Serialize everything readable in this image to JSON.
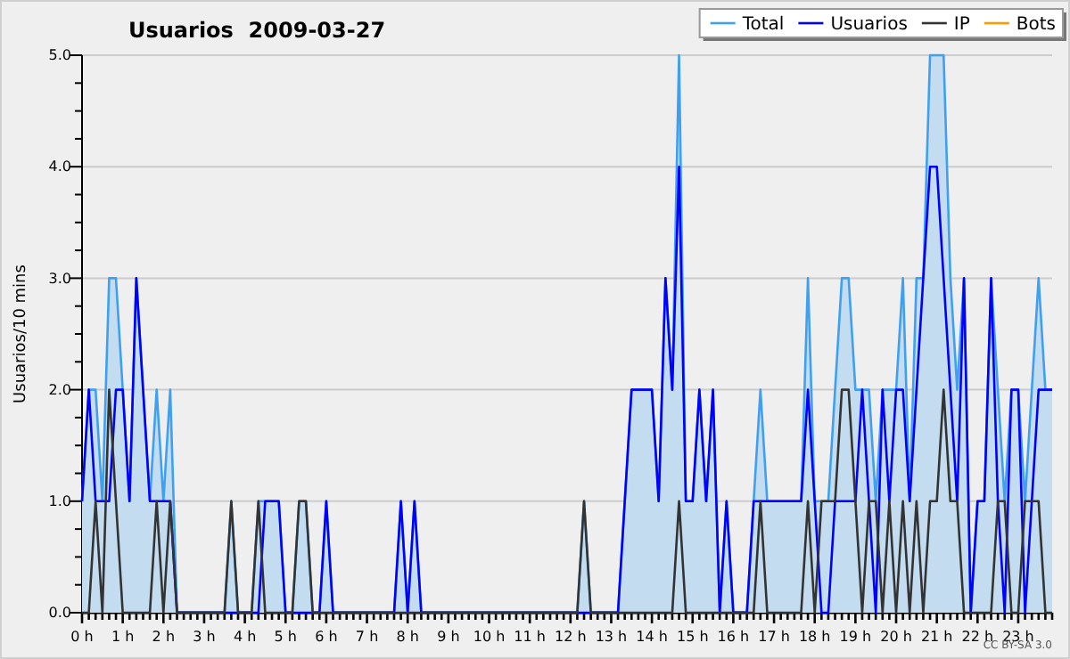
{
  "chart_data": {
    "type": "line",
    "title": "Usuarios  2009-03-27",
    "ylabel": "Usuarios/10 mins",
    "annotations": [
      "CC BY-SA 3.0"
    ],
    "categories": [
      "0 h",
      null,
      null,
      null,
      null,
      null,
      "1 h",
      null,
      null,
      null,
      null,
      null,
      "2 h",
      null,
      null,
      null,
      null,
      null,
      "3 h",
      null,
      null,
      null,
      null,
      null,
      "4 h",
      null,
      null,
      null,
      null,
      null,
      "5 h",
      null,
      null,
      null,
      null,
      null,
      "6 h",
      null,
      null,
      null,
      null,
      null,
      "7 h",
      null,
      null,
      null,
      null,
      null,
      "8 h",
      null,
      null,
      null,
      null,
      null,
      "9 h",
      null,
      null,
      null,
      null,
      null,
      "10 h",
      null,
      null,
      null,
      null,
      null,
      "11 h",
      null,
      null,
      null,
      null,
      null,
      "12 h",
      null,
      null,
      null,
      null,
      null,
      "13 h",
      null,
      null,
      null,
      null,
      null,
      "14 h",
      null,
      null,
      null,
      null,
      null,
      "15 h",
      null,
      null,
      null,
      null,
      null,
      "16 h",
      null,
      null,
      null,
      null,
      null,
      "17 h",
      null,
      null,
      null,
      null,
      null,
      "18 h",
      null,
      null,
      null,
      null,
      null,
      "19 h",
      null,
      null,
      null,
      null,
      null,
      "20 h",
      null,
      null,
      null,
      null,
      null,
      "21 h",
      null,
      null,
      null,
      null,
      null,
      "22 h",
      null,
      null,
      null,
      null,
      null,
      "23 h",
      null,
      null,
      null,
      null,
      null
    ],
    "ylim": [
      0,
      5
    ],
    "yticks": [
      {
        "value": 0,
        "label": "0.0"
      },
      {
        "value": 0.25,
        "label": null
      },
      {
        "value": 0.5,
        "label": null
      },
      {
        "value": 0.75,
        "label": null
      },
      {
        "value": 1,
        "label": "1.0"
      },
      {
        "value": 1.25,
        "label": null
      },
      {
        "value": 1.5,
        "label": null
      },
      {
        "value": 1.75,
        "label": null
      },
      {
        "value": 2,
        "label": "2.0"
      },
      {
        "value": 2.25,
        "label": null
      },
      {
        "value": 2.5,
        "label": null
      },
      {
        "value": 2.75,
        "label": null
      },
      {
        "value": 3,
        "label": "3.0"
      },
      {
        "value": 3.25,
        "label": null
      },
      {
        "value": 3.5,
        "label": null
      },
      {
        "value": 3.75,
        "label": null
      },
      {
        "value": 4,
        "label": "4.0"
      },
      {
        "value": 4.25,
        "label": null
      },
      {
        "value": 4.5,
        "label": null
      },
      {
        "value": 4.75,
        "label": null
      },
      {
        "value": 5,
        "label": "5.0"
      }
    ],
    "grid": "y",
    "legend": "top right",
    "marker": "none",
    "line_style": "solid",
    "series": [
      {
        "name": "Bots",
        "color": "#ff9900",
        "values": [
          null,
          null,
          null,
          null,
          null,
          null,
          null,
          null,
          null,
          null,
          null,
          null,
          null,
          null,
          null,
          null,
          null,
          null,
          null,
          null,
          null,
          null,
          null,
          null,
          null,
          null,
          null,
          null,
          null,
          null,
          null,
          null,
          null,
          null,
          null,
          null,
          null,
          null,
          null,
          null,
          null,
          null,
          null,
          null,
          null,
          null,
          null,
          null,
          null,
          null,
          null,
          null,
          null,
          null,
          null,
          null,
          null,
          null,
          null,
          null,
          null,
          null,
          null,
          null,
          null,
          null,
          null,
          null,
          null,
          null,
          null,
          null,
          null,
          null,
          null,
          null,
          null,
          null,
          null,
          null,
          null,
          null,
          null,
          null,
          null,
          null,
          null,
          null,
          null,
          null,
          null,
          null,
          null,
          null,
          null,
          null,
          null,
          null,
          null,
          null,
          null,
          null,
          null,
          null,
          null,
          null,
          null,
          null,
          null,
          null,
          null,
          null,
          null,
          null,
          null,
          null,
          null,
          null,
          null,
          null,
          null,
          null,
          null,
          null,
          null,
          null,
          null,
          null,
          null,
          null,
          null,
          null,
          null,
          null,
          null,
          null,
          null,
          null,
          null,
          null,
          null,
          null,
          null,
          null
        ]
      },
      {
        "name": "Total",
        "type": "area",
        "color": "#3fa0f0",
        "values": [
          1,
          2,
          2,
          1,
          3,
          3,
          2,
          1,
          3,
          2,
          1,
          2,
          1,
          2,
          0,
          0,
          0,
          0,
          0,
          0,
          0,
          0,
          1,
          0,
          0,
          0,
          1,
          1,
          1,
          1,
          0,
          0,
          1,
          1,
          0,
          0,
          1,
          0,
          0,
          0,
          0,
          0,
          0,
          0,
          0,
          0,
          0,
          1,
          0,
          1,
          0,
          0,
          0,
          0,
          0,
          0,
          0,
          0,
          0,
          0,
          0,
          0,
          0,
          0,
          0,
          0,
          0,
          0,
          0,
          0,
          0,
          0,
          0,
          0,
          1,
          0,
          0,
          0,
          0,
          0,
          1,
          2,
          2,
          2,
          2,
          1,
          3,
          2,
          5,
          1,
          1,
          2,
          1,
          2,
          0,
          1,
          0,
          0,
          0,
          1,
          2,
          1,
          1,
          1,
          1,
          1,
          1,
          3,
          1,
          1,
          1,
          2,
          3,
          3,
          2,
          2,
          2,
          1,
          2,
          2,
          2,
          3,
          1,
          3,
          3,
          5,
          5,
          5,
          3,
          2,
          3,
          0,
          1,
          1,
          3,
          2,
          1,
          2,
          2,
          1,
          2,
          3,
          2,
          2
        ]
      },
      {
        "name": "Usuarios",
        "color": "#0000ff",
        "values": [
          1,
          2,
          1,
          1,
          1,
          2,
          2,
          1,
          3,
          2,
          1,
          1,
          1,
          1,
          0,
          0,
          0,
          0,
          0,
          0,
          0,
          0,
          0,
          0,
          0,
          0,
          0,
          1,
          1,
          1,
          0,
          0,
          0,
          0,
          0,
          0,
          1,
          0,
          0,
          0,
          0,
          0,
          0,
          0,
          0,
          0,
          0,
          1,
          0,
          1,
          0,
          0,
          0,
          0,
          0,
          0,
          0,
          0,
          0,
          0,
          0,
          0,
          0,
          0,
          0,
          0,
          0,
          0,
          0,
          0,
          0,
          0,
          0,
          0,
          0,
          0,
          0,
          0,
          0,
          0,
          1,
          2,
          2,
          2,
          2,
          1,
          3,
          2,
          4,
          1,
          1,
          2,
          1,
          2,
          0,
          1,
          0,
          0,
          0,
          1,
          1,
          1,
          1,
          1,
          1,
          1,
          1,
          2,
          1,
          0,
          0,
          1,
          1,
          1,
          1,
          2,
          1,
          0,
          2,
          1,
          2,
          2,
          1,
          2,
          3,
          4,
          4,
          3,
          2,
          1,
          3,
          0,
          1,
          1,
          3,
          1,
          0,
          2,
          2,
          0,
          1,
          2,
          2,
          2
        ]
      },
      {
        "name": "IP",
        "color": "#333333",
        "values": [
          0,
          0,
          1,
          0,
          2,
          1,
          0,
          0,
          0,
          0,
          0,
          1,
          0,
          1,
          0,
          0,
          0,
          0,
          0,
          0,
          0,
          0,
          1,
          0,
          0,
          0,
          1,
          0,
          0,
          0,
          0,
          0,
          1,
          1,
          0,
          0,
          0,
          0,
          0,
          0,
          0,
          0,
          0,
          0,
          0,
          0,
          0,
          0,
          0,
          0,
          0,
          0,
          0,
          0,
          0,
          0,
          0,
          0,
          0,
          0,
          0,
          0,
          0,
          0,
          0,
          0,
          0,
          0,
          0,
          0,
          0,
          0,
          0,
          0,
          1,
          0,
          0,
          0,
          0,
          0,
          0,
          0,
          0,
          0,
          0,
          0,
          0,
          0,
          1,
          0,
          0,
          0,
          0,
          0,
          0,
          0,
          0,
          0,
          0,
          0,
          1,
          0,
          0,
          0,
          0,
          0,
          0,
          1,
          0,
          1,
          1,
          1,
          2,
          2,
          1,
          0,
          1,
          1,
          0,
          1,
          0,
          1,
          0,
          1,
          0,
          1,
          1,
          2,
          1,
          1,
          0,
          0,
          0,
          0,
          0,
          1,
          1,
          0,
          0,
          1,
          1,
          1,
          0,
          0
        ]
      }
    ]
  }
}
